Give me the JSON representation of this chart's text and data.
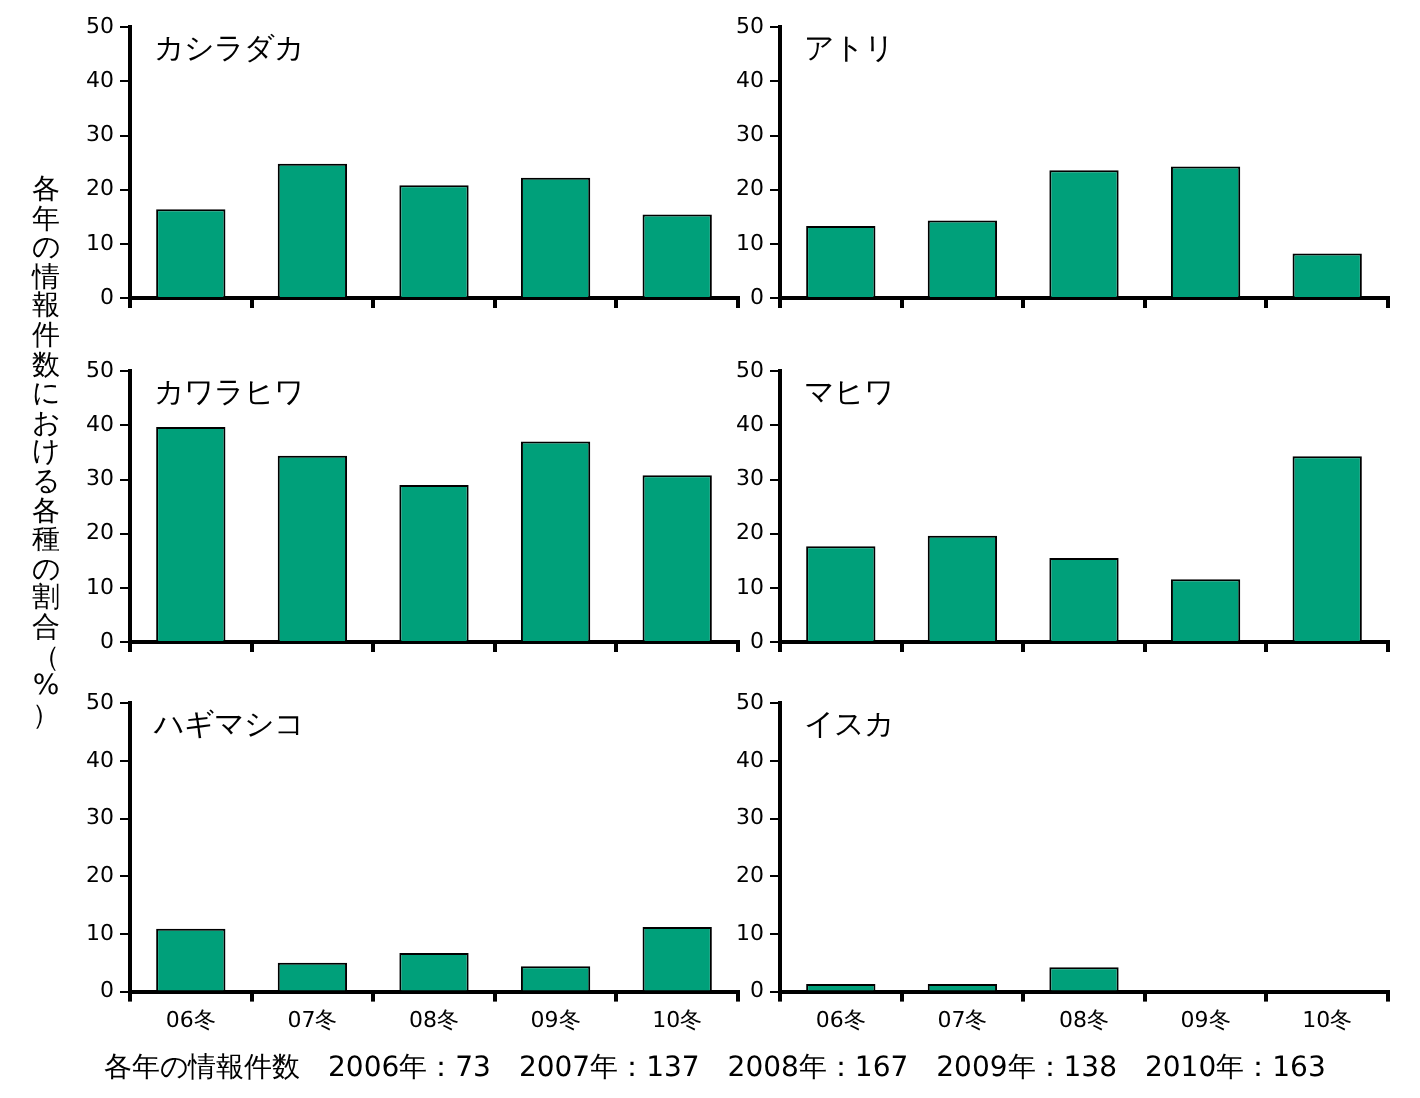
{
  "chart_data": [
    {
      "type": "bar",
      "title": "カシラダカ",
      "ylabel": "各年の情報件数における各種の割合（%）",
      "categories": [
        null,
        null,
        null,
        null,
        null
      ],
      "values": [
        16.4,
        24.8,
        20.8,
        22.2,
        15.4
      ],
      "color": "#00a07a",
      "ylim": [
        0,
        50
      ],
      "yticks": [
        0,
        10,
        20,
        30,
        40,
        50
      ],
      "grid": false,
      "tick_labels": "y"
    },
    {
      "type": "bar",
      "title": "アトリ",
      "categories": [
        null,
        null,
        null,
        null,
        null
      ],
      "values": [
        13.3,
        14.3,
        23.6,
        24.3,
        8.2
      ],
      "color": "#00a07a",
      "ylim": [
        0,
        50
      ],
      "yticks": [
        0,
        10,
        20,
        30,
        40,
        50
      ],
      "grid": false,
      "tick_labels": "y"
    },
    {
      "type": "bar",
      "title": "カワラヒワ",
      "categories": [
        null,
        null,
        null,
        null,
        null
      ],
      "values": [
        39.7,
        34.4,
        29.0,
        37.0,
        30.8
      ],
      "color": "#00a07a",
      "ylim": [
        0,
        50
      ],
      "yticks": [
        0,
        10,
        20,
        30,
        40,
        50
      ],
      "grid": false,
      "tick_labels": "y"
    },
    {
      "type": "bar",
      "title": "マヒワ",
      "categories": [
        null,
        null,
        null,
        null,
        null
      ],
      "values": [
        17.7,
        19.6,
        15.5,
        11.6,
        34.3
      ],
      "color": "#00a07a",
      "ylim": [
        0,
        50
      ],
      "yticks": [
        0,
        10,
        20,
        30,
        40,
        50
      ],
      "grid": false,
      "tick_labels": "y"
    },
    {
      "type": "bar",
      "title": "ハギマシコ",
      "categories": [
        "06冬",
        "07冬",
        "08冬",
        "09冬",
        "10冬"
      ],
      "values": [
        10.9,
        5.0,
        6.7,
        4.4,
        11.2
      ],
      "color": "#00a07a",
      "ylim": [
        0,
        50
      ],
      "yticks": [
        0,
        10,
        20,
        30,
        40,
        50
      ],
      "grid": false,
      "annotations": [
        "各年の情報件数　2006年：73　2007年：137　2008年：167　2009年：138　2010年：163"
      ]
    },
    {
      "type": "bar",
      "title": "イスカ",
      "categories": [
        "06冬",
        "07冬",
        "08冬",
        "09冬",
        "10冬"
      ],
      "values": [
        1.3,
        1.3,
        4.2,
        0,
        0
      ],
      "color": "#00a07a",
      "ylim": [
        0,
        50
      ],
      "yticks": [
        0,
        10,
        20,
        30,
        40,
        50
      ],
      "grid": false
    }
  ]
}
